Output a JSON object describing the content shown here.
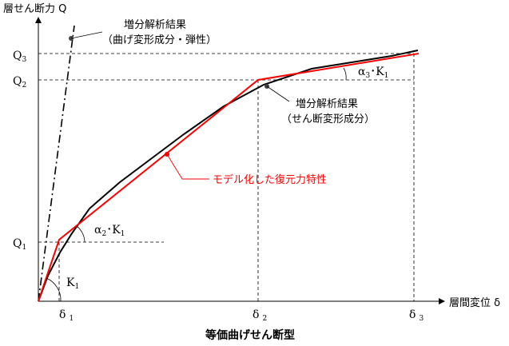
{
  "y_axis_title": "層せん断力 Q",
  "x_axis_title": "層間変位 δ",
  "caption": "等価曲げせん断型",
  "y_ticks": {
    "q3": "Q",
    "q3_sub": "3",
    "q2": "Q",
    "q2_sub": "2",
    "q1": "Q",
    "q1_sub": "1"
  },
  "x_ticks": {
    "d1": "δ",
    "d1_sub": "1",
    "d2": "δ",
    "d2_sub": "2",
    "d3": "δ",
    "d3_sub": "3"
  },
  "annotations": {
    "flexural_line_1": "増分解析結果",
    "flexural_line_2": "（曲げ変形成分・弾性）",
    "shear_line_1": "増分解析結果",
    "shear_line_2": "（せん断変形成分）",
    "model_label": "モデル化した復元力特性",
    "k1": "K",
    "k1_sub": "1",
    "a2k1_a": "α",
    "a2k1_a_sub": "2",
    "a2k1_k": "･K",
    "a2k1_k_sub": "1",
    "a3k1_a": "α",
    "a3k1_a_sub": "3",
    "a3k1_k": "･K",
    "a3k1_k_sub": "1"
  },
  "colors": {
    "model": "#ff0000",
    "analysis": "#000000"
  }
}
